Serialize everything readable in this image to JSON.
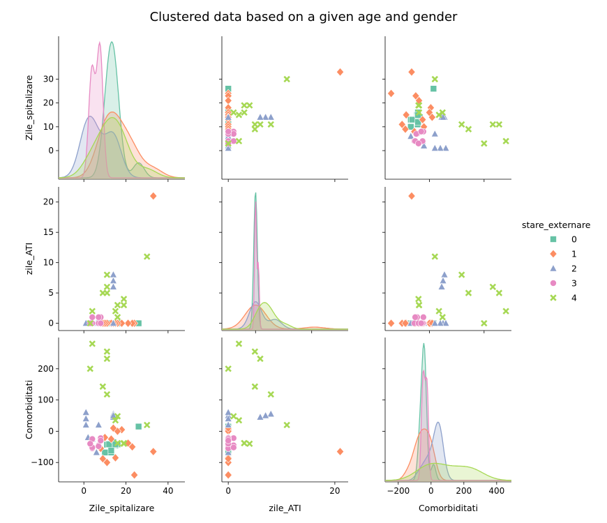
{
  "chart_data": {
    "type": "scatter",
    "subtype": "pairplot",
    "title": "Clustered data based on a given age and gender",
    "variables": [
      "Zile_spitalizare",
      "zile_ATI",
      "Comorbiditati"
    ],
    "axis_ranges": {
      "Zile_spitalizare": [
        -12,
        48
      ],
      "zile_ATI": [
        -1.2,
        22.5
      ],
      "Comorbiditati": [
        -162,
        300
      ]
    },
    "diagonal_x_ranges": {
      "Zile_spitalizare": [
        -12,
        48
      ],
      "zile_ATI": [
        -12,
        33
      ],
      "Comorbiditati": [
        -280,
        490
      ]
    },
    "ticks": {
      "Zile_spitalizare": {
        "values": [
          0,
          20,
          40
        ],
        "labels": [
          "0",
          "20",
          "40"
        ]
      },
      "zile_ATI": {
        "values": [
          0,
          20
        ],
        "labels": [
          "0",
          "20"
        ]
      },
      "Comorbiditati": {
        "values": [
          -200,
          0,
          200,
          400
        ],
        "labels": [
          "−200",
          "0",
          "200",
          "400"
        ]
      }
    },
    "row_ticks": {
      "Zile_spitalizare": {
        "values": [
          0,
          10,
          20,
          30
        ],
        "labels": [
          "0",
          "10",
          "20",
          "30"
        ]
      },
      "zile_ATI": {
        "values": [
          0,
          5,
          10,
          15,
          20
        ],
        "labels": [
          "0",
          "5",
          "10",
          "15",
          "20"
        ]
      },
      "Comorbiditati": {
        "values": [
          -100,
          0,
          100,
          200
        ],
        "labels": [
          "−100",
          "0",
          "100",
          "200"
        ]
      }
    },
    "legend": {
      "title": "stare_externare",
      "placement": "right"
    },
    "series": [
      {
        "name": "0",
        "color": "#66c2a5",
        "marker": "square",
        "points": [
          [
            26,
            0,
            15
          ],
          [
            16,
            0,
            -42
          ],
          [
            15,
            0,
            -45
          ],
          [
            14,
            0,
            -43
          ],
          [
            14,
            0,
            -35
          ],
          [
            13,
            0,
            -68
          ],
          [
            12,
            0,
            -40
          ],
          [
            11,
            0,
            -43
          ],
          [
            10,
            0,
            -68
          ],
          [
            13,
            0,
            -62
          ],
          [
            12,
            0,
            -42
          ],
          [
            15,
            0,
            -42
          ]
        ]
      },
      {
        "name": "1",
        "color": "#fc8d62",
        "marker": "diamond",
        "points": [
          [
            33,
            21,
            -65
          ],
          [
            24,
            0,
            -140
          ],
          [
            23,
            0,
            -50
          ],
          [
            21,
            0,
            -38
          ],
          [
            18,
            0,
            5
          ],
          [
            16,
            0,
            0
          ],
          [
            15,
            0,
            -85
          ],
          [
            14,
            0,
            10
          ],
          [
            13,
            0,
            -25
          ],
          [
            11,
            0,
            -100
          ],
          [
            10,
            0,
            -20
          ],
          [
            9,
            0,
            -88
          ],
          [
            8,
            0,
            -55
          ]
        ]
      },
      {
        "name": "2",
        "color": "#8da0cb",
        "marker": "triangle",
        "points": [
          [
            14,
            8,
            55
          ],
          [
            14,
            7,
            50
          ],
          [
            14,
            6,
            45
          ],
          [
            14,
            0,
            50
          ],
          [
            7,
            0,
            20
          ],
          [
            6,
            0,
            -68
          ],
          [
            4,
            0,
            -25
          ],
          [
            2,
            0,
            -20
          ],
          [
            1,
            0,
            60
          ],
          [
            1,
            0,
            40
          ],
          [
            1,
            0,
            20
          ]
        ]
      },
      {
        "name": "3",
        "color": "#e78ac3",
        "marker": "circle",
        "points": [
          [
            8,
            1,
            -22
          ],
          [
            8,
            0,
            -22
          ],
          [
            7,
            1,
            -45
          ],
          [
            7,
            0,
            -48
          ],
          [
            4,
            0,
            -25
          ],
          [
            4,
            0,
            -55
          ],
          [
            4,
            1,
            -52
          ],
          [
            3,
            0,
            -40
          ],
          [
            8,
            0,
            -30
          ]
        ]
      },
      {
        "name": "4",
        "color": "#a6d854",
        "marker": "x",
        "points": [
          [
            30,
            11,
            20
          ],
          [
            19,
            4,
            -40
          ],
          [
            16,
            1,
            48
          ],
          [
            16,
            3,
            -38
          ],
          [
            15,
            2,
            35
          ],
          [
            11,
            8,
            118
          ],
          [
            11,
            6,
            232
          ],
          [
            11,
            5,
            255
          ],
          [
            9,
            5,
            143
          ],
          [
            4,
            2,
            280
          ],
          [
            3,
            0,
            200
          ],
          [
            19,
            3,
            -38
          ]
        ]
      }
    ]
  }
}
